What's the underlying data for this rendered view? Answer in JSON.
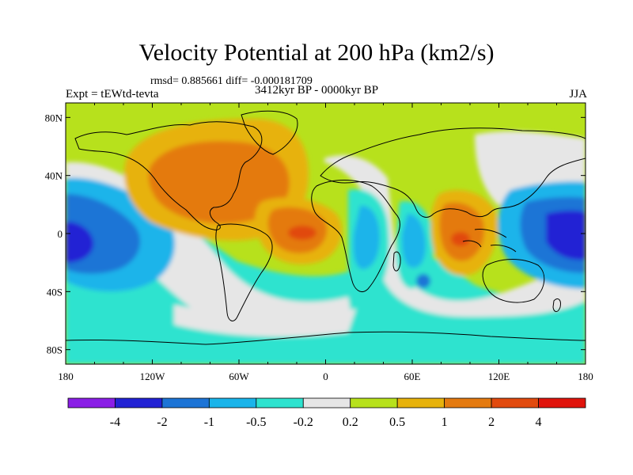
{
  "title": "Velocity Potential at 200 hPa (km2/s)",
  "stats": "rmsd= 0.885661 diff= -0.000181709",
  "experiment": "Expt = tEWtd-tevta",
  "period": "3412kyr BP - 0000kyr BP",
  "season": "JJA",
  "map": {
    "projection": "cylindrical equidistant",
    "lon_ticks": [
      "180",
      "120W",
      "60W",
      "0",
      "60E",
      "120E",
      "180"
    ],
    "lat_ticks": [
      "80N",
      "40N",
      "0",
      "40S",
      "80S"
    ]
  },
  "colorbar": {
    "colors": [
      "#8a1ee6",
      "#2222d4",
      "#1c74d6",
      "#1ab4ea",
      "#2ee3cf",
      "#e6e6e6",
      "#b7e11c",
      "#e7b20c",
      "#e47a10",
      "#e14a0e",
      "#e0140c"
    ],
    "labels": [
      "-4",
      "-2",
      "-1",
      "-0.5",
      "-0.2",
      "0.2",
      "0.5",
      "1",
      "2",
      "4"
    ]
  }
}
